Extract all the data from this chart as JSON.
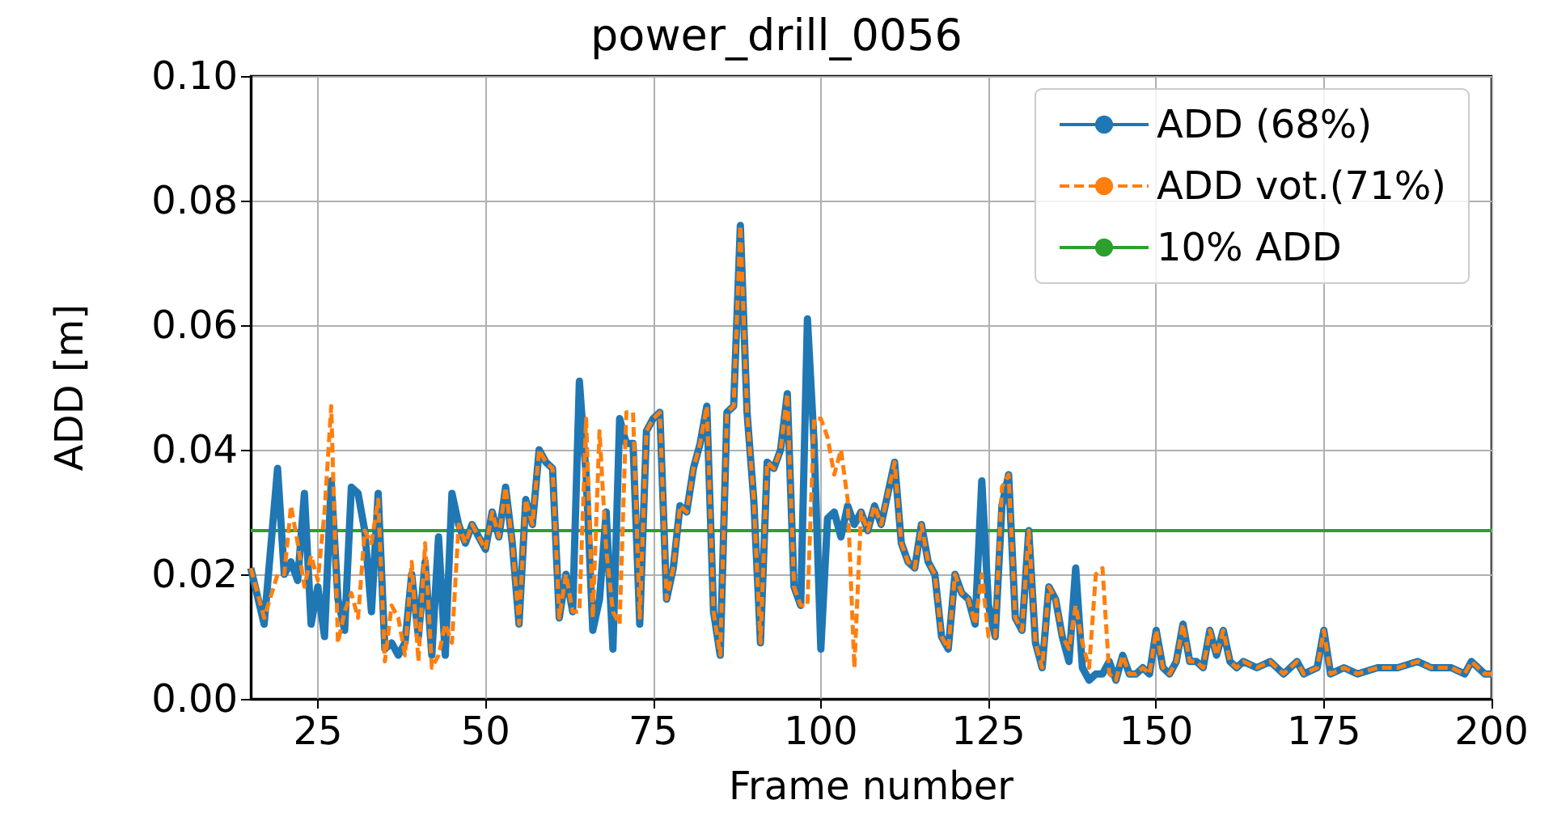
{
  "chart_data": {
    "type": "line",
    "title": "power_drill_0056",
    "xlabel": "Frame number",
    "ylabel": "ADD [m]",
    "x": [
      15,
      17,
      19,
      20,
      21,
      22,
      23,
      24,
      25,
      26,
      27,
      28,
      29,
      30,
      31,
      32,
      33,
      34,
      35,
      36,
      37,
      38,
      39,
      40,
      41,
      42,
      43,
      44,
      45,
      46,
      47,
      48,
      49,
      50,
      51,
      52,
      53,
      54,
      55,
      56,
      57,
      58,
      59,
      60,
      61,
      62,
      63,
      64,
      65,
      66,
      67,
      68,
      69,
      70,
      71,
      72,
      73,
      74,
      75,
      76,
      77,
      78,
      79,
      80,
      81,
      82,
      83,
      84,
      85,
      86,
      87,
      88,
      89,
      90,
      91,
      92,
      93,
      94,
      95,
      96,
      97,
      98,
      99,
      100,
      101,
      102,
      103,
      104,
      105,
      106,
      107,
      108,
      109,
      110,
      111,
      112,
      113,
      114,
      115,
      116,
      117,
      118,
      119,
      120,
      121,
      122,
      123,
      124,
      125,
      126,
      127,
      128,
      129,
      130,
      131,
      132,
      133,
      134,
      135,
      136,
      137,
      138,
      139,
      140,
      141,
      142,
      143,
      144,
      145,
      146,
      147,
      148,
      149,
      150,
      151,
      152,
      153,
      154,
      155,
      156,
      157,
      158,
      159,
      160,
      161,
      162,
      163,
      165,
      167,
      168,
      169,
      171,
      172,
      174,
      175,
      176,
      178,
      180,
      183,
      186,
      189,
      191,
      194,
      196,
      197,
      199,
      200
    ],
    "series": [
      {
        "name": "ADD (68%)",
        "color": "#1f77b4",
        "line_style": "solid",
        "values": [
          0.021,
          0.012,
          0.037,
          0.02,
          0.022,
          0.019,
          0.033,
          0.012,
          0.018,
          0.01,
          0.035,
          0.016,
          0.011,
          0.034,
          0.033,
          0.027,
          0.014,
          0.033,
          0.008,
          0.009,
          0.007,
          0.009,
          0.02,
          0.01,
          0.022,
          0.007,
          0.026,
          0.007,
          0.033,
          0.028,
          0.025,
          0.028,
          0.026,
          0.024,
          0.03,
          0.026,
          0.034,
          0.025,
          0.012,
          0.032,
          0.028,
          0.04,
          0.038,
          0.037,
          0.013,
          0.02,
          0.014,
          0.051,
          0.036,
          0.011,
          0.016,
          0.03,
          0.008,
          0.045,
          0.041,
          0.041,
          0.012,
          0.043,
          0.045,
          0.046,
          0.016,
          0.021,
          0.031,
          0.03,
          0.037,
          0.041,
          0.047,
          0.014,
          0.007,
          0.046,
          0.047,
          0.076,
          0.046,
          0.032,
          0.009,
          0.038,
          0.037,
          0.04,
          0.049,
          0.018,
          0.015,
          0.061,
          0.041,
          0.008,
          0.029,
          0.03,
          0.026,
          0.031,
          0.028,
          0.03,
          0.027,
          0.031,
          0.028,
          0.033,
          0.038,
          0.025,
          0.022,
          0.021,
          0.028,
          0.022,
          0.02,
          0.01,
          0.008,
          0.02,
          0.017,
          0.016,
          0.012,
          0.035,
          0.015,
          0.01,
          0.031,
          0.036,
          0.013,
          0.011,
          0.027,
          0.009,
          0.005,
          0.018,
          0.016,
          0.01,
          0.006,
          0.021,
          0.005,
          0.003,
          0.004,
          0.004,
          0.006,
          0.003,
          0.007,
          0.004,
          0.004,
          0.005,
          0.004,
          0.011,
          0.005,
          0.004,
          0.006,
          0.012,
          0.006,
          0.006,
          0.005,
          0.011,
          0.007,
          0.011,
          0.006,
          0.005,
          0.006,
          0.005,
          0.006,
          0.005,
          0.004,
          0.006,
          0.004,
          0.005,
          0.011,
          0.004,
          0.005,
          0.004,
          0.005,
          0.005,
          0.006,
          0.005,
          0.005,
          0.004,
          0.006,
          0.004,
          0.004
        ]
      },
      {
        "name": "ADD vot.(71%)",
        "color": "#ff7f0e",
        "line_style": "dashed",
        "values": [
          0.021,
          0.013,
          0.02,
          0.02,
          0.031,
          0.025,
          0.018,
          0.023,
          0.019,
          0.03,
          0.047,
          0.009,
          0.014,
          0.017,
          0.013,
          0.027,
          0.025,
          0.032,
          0.006,
          0.015,
          0.013,
          0.007,
          0.022,
          0.006,
          0.025,
          0.005,
          0.007,
          0.012,
          0.009,
          0.028,
          0.025,
          0.028,
          0.026,
          0.024,
          0.03,
          0.026,
          0.034,
          0.025,
          0.012,
          0.032,
          0.028,
          0.04,
          0.038,
          0.037,
          0.013,
          0.02,
          0.014,
          0.014,
          0.045,
          0.013,
          0.043,
          0.024,
          0.014,
          0.012,
          0.046,
          0.046,
          0.013,
          0.043,
          0.045,
          0.046,
          0.016,
          0.021,
          0.031,
          0.03,
          0.037,
          0.041,
          0.047,
          0.014,
          0.007,
          0.046,
          0.047,
          0.076,
          0.046,
          0.032,
          0.009,
          0.038,
          0.037,
          0.04,
          0.049,
          0.018,
          0.015,
          0.015,
          0.045,
          0.045,
          0.042,
          0.036,
          0.04,
          0.032,
          0.005,
          0.03,
          0.027,
          0.031,
          0.028,
          0.033,
          0.038,
          0.025,
          0.022,
          0.021,
          0.028,
          0.022,
          0.02,
          0.01,
          0.008,
          0.02,
          0.017,
          0.016,
          0.012,
          0.02,
          0.01,
          0.01,
          0.034,
          0.036,
          0.013,
          0.011,
          0.027,
          0.009,
          0.005,
          0.018,
          0.016,
          0.01,
          0.008,
          0.015,
          0.009,
          0.005,
          0.02,
          0.021,
          0.004,
          0.003,
          0.007,
          0.004,
          0.004,
          0.005,
          0.004,
          0.011,
          0.005,
          0.004,
          0.006,
          0.012,
          0.006,
          0.006,
          0.005,
          0.011,
          0.007,
          0.011,
          0.006,
          0.005,
          0.006,
          0.005,
          0.006,
          0.005,
          0.004,
          0.006,
          0.004,
          0.005,
          0.011,
          0.004,
          0.005,
          0.004,
          0.005,
          0.005,
          0.006,
          0.005,
          0.005,
          0.004,
          0.006,
          0.004,
          0.004
        ]
      }
    ],
    "ref_lines": [
      {
        "axis": "y",
        "value": 0.027,
        "label": "10% ADD",
        "color": "#2ca02c",
        "line_style": "solid"
      }
    ],
    "xlim": [
      15,
      200
    ],
    "xticks": [
      25,
      50,
      75,
      100,
      125,
      150,
      175,
      200
    ],
    "ylim": [
      0,
      0.1
    ],
    "yticks": [
      {
        "value": 0,
        "label": "0.00"
      },
      {
        "value": 0.02,
        "label": "0.02"
      },
      {
        "value": 0.04,
        "label": "0.04"
      },
      {
        "value": 0.06,
        "label": "0.06"
      },
      {
        "value": 0.08,
        "label": "0.08"
      },
      {
        "value": 0.1,
        "label": "0.10"
      }
    ],
    "grid": true,
    "legend": "top right",
    "marker": "none"
  }
}
